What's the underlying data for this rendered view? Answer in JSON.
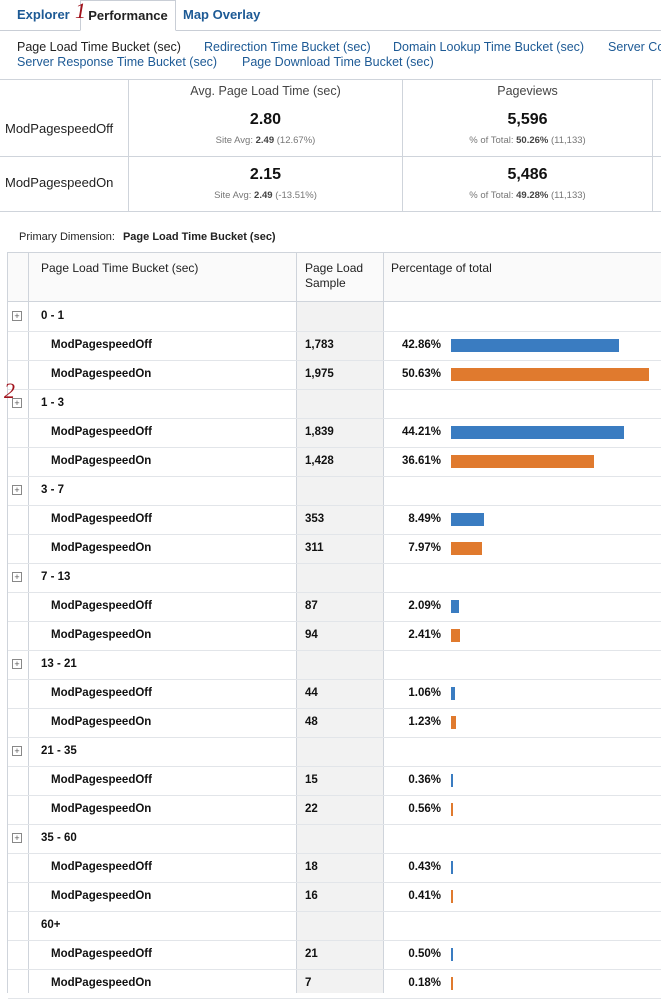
{
  "tabs": [
    {
      "label": "Explorer",
      "active": false
    },
    {
      "label": "Performance",
      "active": true
    },
    {
      "label": "Map Overlay",
      "active": false
    }
  ],
  "annotations": [
    "1",
    "2"
  ],
  "metric_links": [
    {
      "label": "Page Load Time Bucket (sec)",
      "selected": true
    },
    {
      "label": "Redirection Time Bucket (sec)",
      "selected": false
    },
    {
      "label": "Domain Lookup Time Bucket (sec)",
      "selected": false
    },
    {
      "label": "Server Co",
      "selected": false
    },
    {
      "label": "Server Response Time Bucket (sec)",
      "selected": false
    },
    {
      "label": "Page Download Time Bucket (sec)",
      "selected": false
    }
  ],
  "scorecard": {
    "headers": [
      "Avg. Page Load Time (sec)",
      "Pageviews"
    ],
    "rows": [
      {
        "label": "ModPagespeedOff",
        "avg_value": "2.80",
        "avg_sub_prefix": "Site Avg:",
        "avg_sub_bold": "2.49",
        "avg_sub_suffix": "(12.67%)",
        "pv_value": "5,596",
        "pv_sub_prefix": "% of Total:",
        "pv_sub_bold": "50.26%",
        "pv_sub_suffix": "(11,133)"
      },
      {
        "label": "ModPagespeedOn",
        "avg_value": "2.15",
        "avg_sub_prefix": "Site Avg:",
        "avg_sub_bold": "2.49",
        "avg_sub_suffix": "(-13.51%)",
        "pv_value": "5,486",
        "pv_sub_prefix": "% of Total:",
        "pv_sub_bold": "49.28%",
        "pv_sub_suffix": "(11,133)"
      }
    ]
  },
  "primary_dimension": {
    "label": "Primary Dimension:",
    "value": "Page Load Time Bucket (sec)"
  },
  "table": {
    "headers": [
      "Page Load Time Bucket (sec)",
      "Page Load",
      "Sample",
      "Percentage of total"
    ],
    "expand_icon": "plus-box-icon",
    "colors": {
      "off": "#3a7cc1",
      "on": "#e07a2e"
    },
    "max_percent": 50.63,
    "groups": [
      {
        "bucket": "0 - 1",
        "expandable": true,
        "rows": [
          {
            "name": "ModPagespeedOff",
            "sample": "1,783",
            "pct": "42.86%",
            "value": 42.86,
            "series": "off"
          },
          {
            "name": "ModPagespeedOn",
            "sample": "1,975",
            "pct": "50.63%",
            "value": 50.63,
            "series": "on"
          }
        ]
      },
      {
        "bucket": "1 - 3",
        "expandable": true,
        "rows": [
          {
            "name": "ModPagespeedOff",
            "sample": "1,839",
            "pct": "44.21%",
            "value": 44.21,
            "series": "off"
          },
          {
            "name": "ModPagespeedOn",
            "sample": "1,428",
            "pct": "36.61%",
            "value": 36.61,
            "series": "on"
          }
        ]
      },
      {
        "bucket": "3 - 7",
        "expandable": true,
        "rows": [
          {
            "name": "ModPagespeedOff",
            "sample": "353",
            "pct": "8.49%",
            "value": 8.49,
            "series": "off"
          },
          {
            "name": "ModPagespeedOn",
            "sample": "311",
            "pct": "7.97%",
            "value": 7.97,
            "series": "on"
          }
        ]
      },
      {
        "bucket": "7 - 13",
        "expandable": true,
        "rows": [
          {
            "name": "ModPagespeedOff",
            "sample": "87",
            "pct": "2.09%",
            "value": 2.09,
            "series": "off"
          },
          {
            "name": "ModPagespeedOn",
            "sample": "94",
            "pct": "2.41%",
            "value": 2.41,
            "series": "on"
          }
        ]
      },
      {
        "bucket": "13 - 21",
        "expandable": true,
        "rows": [
          {
            "name": "ModPagespeedOff",
            "sample": "44",
            "pct": "1.06%",
            "value": 1.06,
            "series": "off"
          },
          {
            "name": "ModPagespeedOn",
            "sample": "48",
            "pct": "1.23%",
            "value": 1.23,
            "series": "on"
          }
        ]
      },
      {
        "bucket": "21 - 35",
        "expandable": true,
        "rows": [
          {
            "name": "ModPagespeedOff",
            "sample": "15",
            "pct": "0.36%",
            "value": 0.36,
            "series": "off"
          },
          {
            "name": "ModPagespeedOn",
            "sample": "22",
            "pct": "0.56%",
            "value": 0.56,
            "series": "on"
          }
        ]
      },
      {
        "bucket": "35 - 60",
        "expandable": true,
        "rows": [
          {
            "name": "ModPagespeedOff",
            "sample": "18",
            "pct": "0.43%",
            "value": 0.43,
            "series": "off"
          },
          {
            "name": "ModPagespeedOn",
            "sample": "16",
            "pct": "0.41%",
            "value": 0.41,
            "series": "on"
          }
        ]
      },
      {
        "bucket": "60+",
        "expandable": false,
        "rows": [
          {
            "name": "ModPagespeedOff",
            "sample": "21",
            "pct": "0.50%",
            "value": 0.5,
            "series": "off"
          },
          {
            "name": "ModPagespeedOn",
            "sample": "7",
            "pct": "0.18%",
            "value": 0.18,
            "series": "on"
          }
        ]
      }
    ]
  }
}
